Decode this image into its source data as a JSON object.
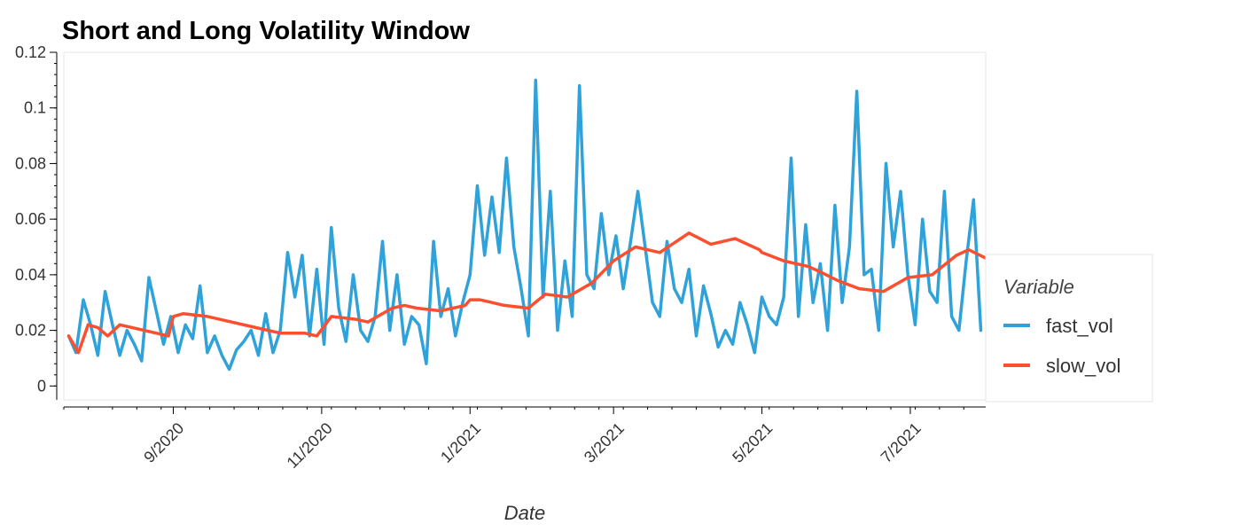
{
  "chart_data": {
    "type": "line",
    "title": "Short and Long Volatility Window",
    "xlabel": "Date",
    "ylabel": "",
    "ylim": [
      -0.005,
      0.12
    ],
    "xlim": [
      "2020-07-18",
      "2021-08-01"
    ],
    "y_ticks": [
      0,
      0.02,
      0.04,
      0.06,
      0.08,
      0.1,
      0.12
    ],
    "y_tick_labels": [
      "0",
      "0.02",
      "0.04",
      "0.06",
      "0.08",
      "0.1",
      "0.12"
    ],
    "x_ticks": [
      "2020-09-01",
      "2020-11-01",
      "2021-01-01",
      "2021-03-01",
      "2021-05-01",
      "2021-07-01"
    ],
    "x_tick_labels": [
      "9/2020",
      "11/2020",
      "1/2021",
      "3/2021",
      "5/2021",
      "7/2021"
    ],
    "legend": {
      "title": "Variable",
      "placement": "right"
    },
    "grid": false,
    "series": [
      {
        "name": "fast_vol",
        "color": "#30a2da",
        "x": [
          "2020-07-20",
          "2020-07-23",
          "2020-07-26",
          "2020-07-29",
          "2020-08-01",
          "2020-08-04",
          "2020-08-07",
          "2020-08-10",
          "2020-08-13",
          "2020-08-16",
          "2020-08-19",
          "2020-08-22",
          "2020-08-25",
          "2020-08-28",
          "2020-08-31",
          "2020-09-03",
          "2020-09-06",
          "2020-09-09",
          "2020-09-12",
          "2020-09-15",
          "2020-09-18",
          "2020-09-21",
          "2020-09-24",
          "2020-09-27",
          "2020-09-30",
          "2020-10-03",
          "2020-10-06",
          "2020-10-09",
          "2020-10-12",
          "2020-10-15",
          "2020-10-18",
          "2020-10-21",
          "2020-10-24",
          "2020-10-27",
          "2020-10-30",
          "2020-11-02",
          "2020-11-05",
          "2020-11-08",
          "2020-11-11",
          "2020-11-14",
          "2020-11-17",
          "2020-11-20",
          "2020-11-23",
          "2020-11-26",
          "2020-11-29",
          "2020-12-02",
          "2020-12-05",
          "2020-12-08",
          "2020-12-11",
          "2020-12-14",
          "2020-12-17",
          "2020-12-20",
          "2020-12-23",
          "2020-12-26",
          "2020-12-29",
          "2021-01-01",
          "2021-01-04",
          "2021-01-07",
          "2021-01-10",
          "2021-01-13",
          "2021-01-16",
          "2021-01-19",
          "2021-01-22",
          "2021-01-25",
          "2021-01-28",
          "2021-01-31",
          "2021-02-03",
          "2021-02-06",
          "2021-02-09",
          "2021-02-12",
          "2021-02-15",
          "2021-02-18",
          "2021-02-21",
          "2021-02-24",
          "2021-02-27",
          "2021-03-02",
          "2021-03-05",
          "2021-03-08",
          "2021-03-11",
          "2021-03-14",
          "2021-03-17",
          "2021-03-20",
          "2021-03-23",
          "2021-03-26",
          "2021-03-29",
          "2021-04-01",
          "2021-04-04",
          "2021-04-07",
          "2021-04-10",
          "2021-04-13",
          "2021-04-16",
          "2021-04-19",
          "2021-04-22",
          "2021-04-25",
          "2021-04-28",
          "2021-05-01",
          "2021-05-04",
          "2021-05-07",
          "2021-05-10",
          "2021-05-13",
          "2021-05-16",
          "2021-05-19",
          "2021-05-22",
          "2021-05-25",
          "2021-05-28",
          "2021-05-31",
          "2021-06-03",
          "2021-06-06",
          "2021-06-09",
          "2021-06-12",
          "2021-06-15",
          "2021-06-18",
          "2021-06-21",
          "2021-06-24",
          "2021-06-27",
          "2021-06-30",
          "2021-07-03",
          "2021-07-06",
          "2021-07-09",
          "2021-07-12",
          "2021-07-15",
          "2021-07-18",
          "2021-07-21",
          "2021-07-24",
          "2021-07-27",
          "2021-07-30"
        ],
        "values": [
          0.018,
          0.012,
          0.031,
          0.022,
          0.011,
          0.034,
          0.022,
          0.011,
          0.02,
          0.015,
          0.009,
          0.039,
          0.027,
          0.015,
          0.025,
          0.012,
          0.022,
          0.017,
          0.036,
          0.012,
          0.018,
          0.011,
          0.006,
          0.013,
          0.016,
          0.02,
          0.011,
          0.026,
          0.012,
          0.02,
          0.048,
          0.032,
          0.047,
          0.018,
          0.042,
          0.015,
          0.057,
          0.028,
          0.016,
          0.04,
          0.02,
          0.016,
          0.025,
          0.052,
          0.02,
          0.04,
          0.015,
          0.025,
          0.022,
          0.008,
          0.052,
          0.025,
          0.035,
          0.018,
          0.03,
          0.04,
          0.072,
          0.047,
          0.068,
          0.048,
          0.082,
          0.05,
          0.035,
          0.018,
          0.11,
          0.032,
          0.07,
          0.02,
          0.045,
          0.025,
          0.108,
          0.04,
          0.035,
          0.062,
          0.04,
          0.054,
          0.035,
          0.052,
          0.07,
          0.05,
          0.03,
          0.025,
          0.052,
          0.035,
          0.03,
          0.042,
          0.018,
          0.036,
          0.026,
          0.014,
          0.02,
          0.015,
          0.03,
          0.022,
          0.012,
          0.032,
          0.025,
          0.022,
          0.032,
          0.082,
          0.025,
          0.058,
          0.03,
          0.044,
          0.02,
          0.065,
          0.03,
          0.05,
          0.106,
          0.04,
          0.042,
          0.02,
          0.08,
          0.05,
          0.07,
          0.04,
          0.022,
          0.06,
          0.034,
          0.03,
          0.07,
          0.025,
          0.02,
          0.045,
          0.067,
          0.02
        ]
      },
      {
        "name": "slow_vol",
        "color": "#fc4f30",
        "x": [
          "2020-07-20",
          "2020-07-24",
          "2020-07-28",
          "2020-08-01",
          "2020-08-05",
          "2020-08-10",
          "2020-08-20",
          "2020-08-30",
          "2020-09-01",
          "2020-09-05",
          "2020-09-15",
          "2020-09-25",
          "2020-10-05",
          "2020-10-15",
          "2020-10-25",
          "2020-10-30",
          "2020-11-05",
          "2020-11-15",
          "2020-11-20",
          "2020-11-30",
          "2020-12-05",
          "2020-12-10",
          "2020-12-20",
          "2020-12-30",
          "2021-01-01",
          "2021-01-05",
          "2021-01-10",
          "2021-01-15",
          "2021-01-25",
          "2021-02-01",
          "2021-02-10",
          "2021-02-20",
          "2021-03-01",
          "2021-03-10",
          "2021-03-20",
          "2021-04-01",
          "2021-04-10",
          "2021-04-20",
          "2021-04-30",
          "2021-05-01",
          "2021-05-10",
          "2021-05-20",
          "2021-05-25",
          "2021-06-01",
          "2021-06-10",
          "2021-06-20",
          "2021-06-30",
          "2021-07-10",
          "2021-07-20",
          "2021-07-25",
          "2021-08-01"
        ],
        "values": [
          0.018,
          0.012,
          0.022,
          0.021,
          0.018,
          0.022,
          0.02,
          0.018,
          0.025,
          0.026,
          0.025,
          0.023,
          0.021,
          0.019,
          0.019,
          0.018,
          0.025,
          0.024,
          0.023,
          0.028,
          0.029,
          0.028,
          0.027,
          0.029,
          0.031,
          0.031,
          0.03,
          0.029,
          0.028,
          0.033,
          0.032,
          0.037,
          0.045,
          0.05,
          0.048,
          0.055,
          0.051,
          0.053,
          0.049,
          0.048,
          0.045,
          0.043,
          0.041,
          0.038,
          0.035,
          0.034,
          0.039,
          0.04,
          0.047,
          0.049,
          0.046
        ]
      }
    ]
  }
}
